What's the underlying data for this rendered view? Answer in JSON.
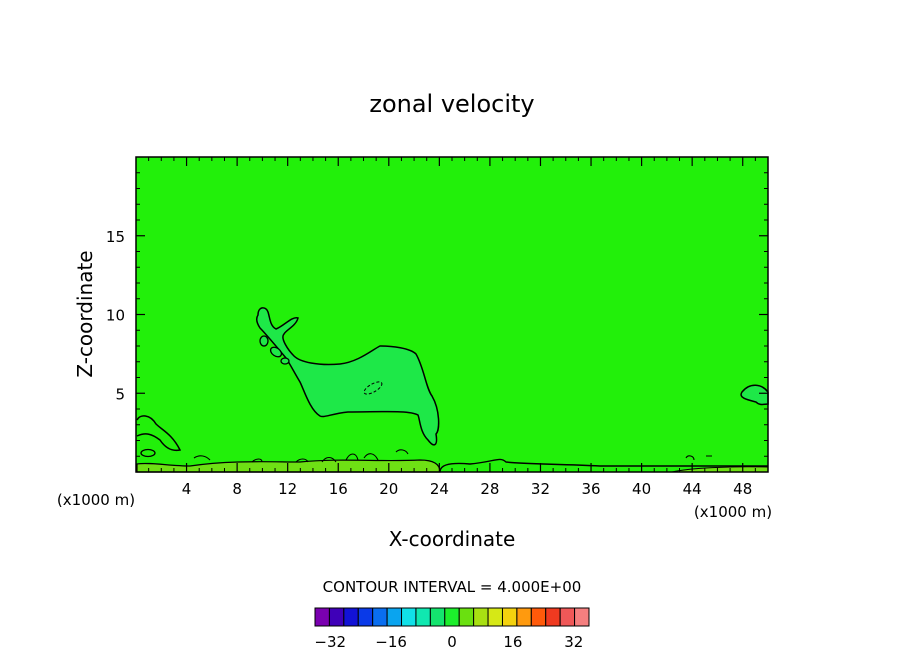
{
  "chart_data": {
    "type": "contour",
    "title": "zonal velocity",
    "xlabel": "X-coordinate",
    "ylabel": "Z-coordinate",
    "x_unit_left": "(x1000 m)",
    "x_unit_right": "(x1000 m)",
    "xlim": [
      0,
      50
    ],
    "ylim": [
      0,
      20
    ],
    "x_ticks": [
      4,
      8,
      12,
      16,
      20,
      24,
      28,
      32,
      36,
      40,
      44,
      48
    ],
    "y_ticks": [
      5,
      10,
      15
    ],
    "contour_interval_label": "CONTOUR INTERVAL = 4.000E+00",
    "contour_interval": 4,
    "colorbar": {
      "range": [
        -36,
        36
      ],
      "tick_values": [
        -32,
        -16,
        0,
        16,
        32
      ],
      "tick_labels": [
        "−32",
        "−16",
        "0",
        "16",
        "32"
      ],
      "colors": [
        "#7a00b0",
        "#3f00b8",
        "#1212d6",
        "#0a3ae8",
        "#0a6ef0",
        "#0aa4ef",
        "#11e0e8",
        "#10e8b0",
        "#14e46e",
        "#1cee2c",
        "#6ae010",
        "#a8e012",
        "#d6e816",
        "#f4d20e",
        "#ff9a0e",
        "#ff5a0a",
        "#f03a20",
        "#f05858",
        "#f57f7f"
      ]
    },
    "background_fill": "#22f00a",
    "regions": [
      {
        "level": "-4 to 0",
        "color": "#1ee848",
        "approx_extent_x": [
          9.6,
          24
        ],
        "approx_extent_z": [
          2,
          10.4
        ]
      },
      {
        "level": "4 to 8",
        "color": "#6ee014",
        "approx_extent_x": [
          0,
          50
        ],
        "approx_extent_z": [
          0,
          0.8
        ]
      }
    ]
  }
}
